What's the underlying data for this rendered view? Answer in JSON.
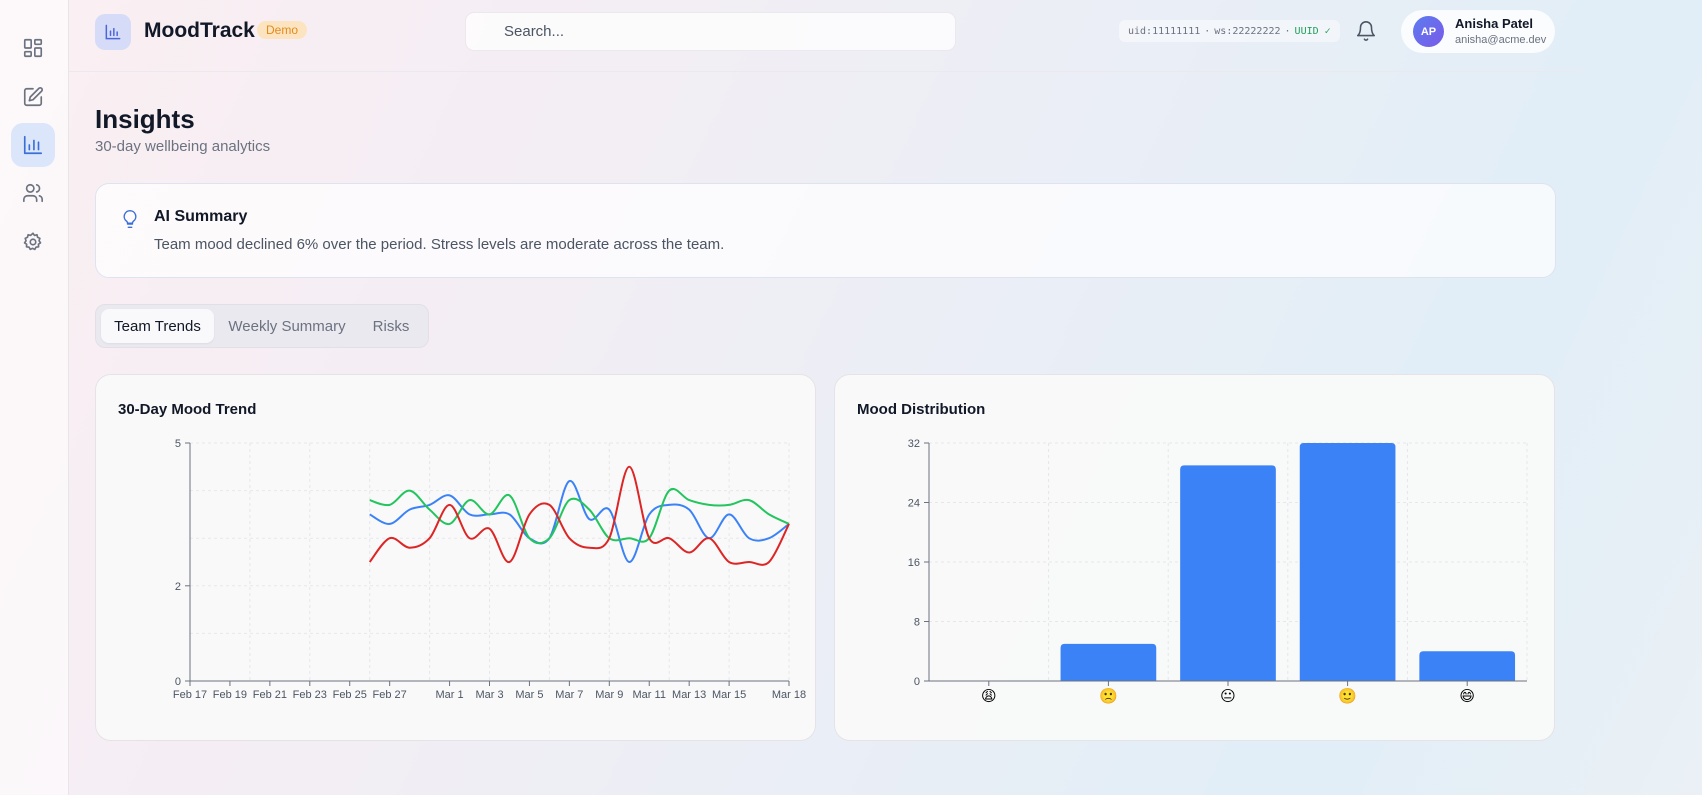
{
  "app": {
    "brand": "MoodTrack",
    "badge": "Demo"
  },
  "search": {
    "placeholder": "Search..."
  },
  "ids": {
    "uid": "uid:11111111",
    "sep": "·",
    "ws": "ws:22222222",
    "uuid": "UUID ✓"
  },
  "user": {
    "initials": "AP",
    "name": "Anisha Patel",
    "email": "anisha@acme.dev"
  },
  "sidebar": {
    "items": [
      {
        "icon": "dashboard-icon",
        "active": false
      },
      {
        "icon": "edit-icon",
        "active": false
      },
      {
        "icon": "bar-chart-icon",
        "active": true
      },
      {
        "icon": "users-icon",
        "active": false
      },
      {
        "icon": "settings-icon",
        "active": false
      }
    ]
  },
  "page": {
    "title": "Insights",
    "subtitle": "30-day wellbeing analytics"
  },
  "ai_summary": {
    "title": "AI Summary",
    "text": "Team mood declined 6% over the period. Stress levels are moderate across the team."
  },
  "tabs": [
    {
      "label": "Team Trends",
      "active": true
    },
    {
      "label": "Weekly Summary",
      "active": false
    },
    {
      "label": "Risks",
      "active": false
    }
  ],
  "colors": {
    "accent": "#3b82f6",
    "green": "#22c55e",
    "red": "#dc2626"
  },
  "chart_data": [
    {
      "type": "line",
      "title": "30-Day Mood Trend",
      "xlabel": "",
      "ylabel": "",
      "x_ticks": [
        "Feb 17",
        "Feb 19",
        "Feb 21",
        "Feb 23",
        "Feb 25",
        "Feb 27",
        "Mar 1",
        "Mar 3",
        "Mar 5",
        "Mar 7",
        "Mar 9",
        "Mar 11",
        "Mar 13",
        "Mar 15",
        "Mar 18"
      ],
      "y_ticks": [
        0,
        2,
        5
      ],
      "ylim": [
        0,
        5
      ],
      "x_range": [
        "2024-02-17",
        "2024-03-18"
      ],
      "grid": true,
      "x": [
        "2024-02-26",
        "2024-02-27",
        "2024-02-28",
        "2024-02-29",
        "2024-03-01",
        "2024-03-02",
        "2024-03-03",
        "2024-03-04",
        "2024-03-05",
        "2024-03-06",
        "2024-03-07",
        "2024-03-08",
        "2024-03-09",
        "2024-03-10",
        "2024-03-11",
        "2024-03-12",
        "2024-03-13",
        "2024-03-14",
        "2024-03-15",
        "2024-03-16",
        "2024-03-17",
        "2024-03-18"
      ],
      "series": [
        {
          "color": "#3b82f6",
          "values": [
            3.5,
            3.3,
            3.6,
            3.7,
            3.9,
            3.5,
            3.5,
            3.5,
            3.0,
            3.0,
            4.2,
            3.4,
            3.6,
            2.5,
            3.5,
            3.7,
            3.6,
            3.0,
            3.5,
            3.0,
            3.0,
            3.3
          ]
        },
        {
          "color": "#22c55e",
          "values": [
            3.8,
            3.7,
            4.0,
            3.6,
            3.3,
            3.8,
            3.5,
            3.9,
            3.0,
            3.0,
            3.8,
            3.6,
            3.0,
            3.0,
            3.0,
            4.0,
            3.8,
            3.7,
            3.7,
            3.8,
            3.5,
            3.3
          ]
        },
        {
          "color": "#dc2626",
          "values": [
            2.5,
            3.0,
            2.8,
            3.0,
            3.7,
            3.0,
            3.2,
            2.5,
            3.5,
            3.7,
            3.0,
            2.8,
            3.0,
            4.5,
            3.0,
            3.0,
            2.7,
            3.0,
            2.5,
            2.5,
            2.5,
            3.3
          ]
        }
      ]
    },
    {
      "type": "bar",
      "title": "Mood Distribution",
      "xlabel": "",
      "ylabel": "",
      "categories": [
        "😩",
        "🙁",
        "😐",
        "🙂",
        "😄"
      ],
      "values": [
        0,
        5,
        29,
        32,
        4
      ],
      "ylim": [
        0,
        32
      ],
      "y_ticks": [
        0,
        8,
        16,
        24,
        32
      ],
      "grid": true,
      "color": "#3b82f6"
    }
  ]
}
